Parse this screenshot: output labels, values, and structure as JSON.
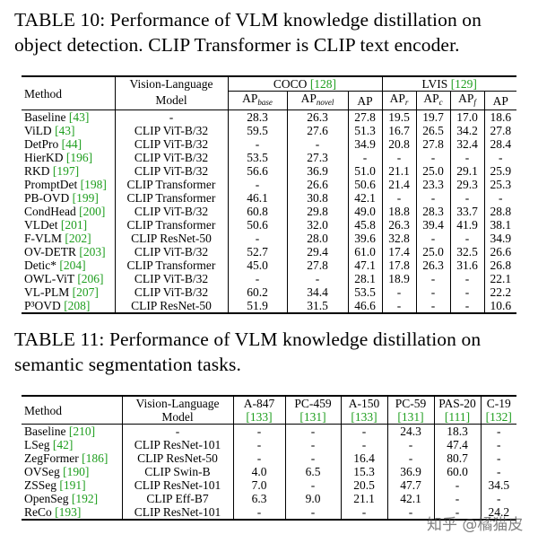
{
  "table10": {
    "caption": "TABLE 10: Performance of VLM knowledge distillation on object detection. CLIP Transformer is CLIP text encoder.",
    "header": {
      "method": "Method",
      "vl_top": "Vision-Language",
      "vl_bottom": "Model",
      "coco": "COCO",
      "coco_ref": "[128]",
      "lvis": "LVIS",
      "lvis_ref": "[129]",
      "ap_base": "AP",
      "ap_base_sub": "base",
      "ap_novel": "AP",
      "ap_novel_sub": "novel",
      "ap": "AP",
      "ap_r": "AP",
      "ap_r_sub": "r",
      "ap_c": "AP",
      "ap_c_sub": "c",
      "ap_f": "AP",
      "ap_f_sub": "f",
      "ap2": "AP"
    },
    "rows": [
      {
        "method": "Baseline",
        "ref": "[43]",
        "model": "-",
        "v": [
          "28.3",
          "26.3",
          "27.8",
          "19.5",
          "19.7",
          "17.0",
          "18.6"
        ]
      },
      {
        "method": "ViLD",
        "ref": "[43]",
        "model": "CLIP ViT-B/32",
        "v": [
          "59.5",
          "27.6",
          "51.3",
          "16.7",
          "26.5",
          "34.2",
          "27.8"
        ]
      },
      {
        "method": "DetPro",
        "ref": "[44]",
        "model": "CLIP ViT-B/32",
        "v": [
          "-",
          "-",
          "34.9",
          "20.8",
          "27.8",
          "32.4",
          "28.4"
        ]
      },
      {
        "method": "HierKD",
        "ref": "[196]",
        "model": "CLIP ViT-B/32",
        "v": [
          "53.5",
          "27.3",
          "-",
          "-",
          "-",
          "-",
          "-"
        ]
      },
      {
        "method": "RKD",
        "ref": "[197]",
        "model": "CLIP ViT-B/32",
        "v": [
          "56.6",
          "36.9",
          "51.0",
          "21.1",
          "25.0",
          "29.1",
          "25.9"
        ]
      },
      {
        "method": "PromptDet",
        "ref": "[198]",
        "model": "CLIP Transformer",
        "v": [
          "-",
          "26.6",
          "50.6",
          "21.4",
          "23.3",
          "29.3",
          "25.3"
        ]
      },
      {
        "method": "PB-OVD",
        "ref": "[199]",
        "model": "CLIP Transformer",
        "v": [
          "46.1",
          "30.8",
          "42.1",
          "-",
          "-",
          "-",
          "-"
        ]
      },
      {
        "method": "CondHead",
        "ref": "[200]",
        "model": "CLIP ViT-B/32",
        "v": [
          "60.8",
          "29.8",
          "49.0",
          "18.8",
          "28.3",
          "33.7",
          "28.8"
        ]
      },
      {
        "method": "VLDet",
        "ref": "[201]",
        "model": "CLIP Transformer",
        "v": [
          "50.6",
          "32.0",
          "45.8",
          "26.3",
          "39.4",
          "41.9",
          "38.1"
        ]
      },
      {
        "method": "F-VLM",
        "ref": "[202]",
        "model": "CLIP ResNet-50",
        "v": [
          "-",
          "28.0",
          "39.6",
          "32.8",
          "-",
          "-",
          "34.9"
        ]
      },
      {
        "method": "OV-DETR",
        "ref": "[203]",
        "model": "CLIP ViT-B/32",
        "v": [
          "52.7",
          "29.4",
          "61.0",
          "17.4",
          "25.0",
          "32.5",
          "26.6"
        ]
      },
      {
        "method": "Detic*",
        "ref": "[204]",
        "model": "CLIP Transformer",
        "v": [
          "45.0",
          "27.8",
          "47.1",
          "17.8",
          "26.3",
          "31.6",
          "26.8"
        ]
      },
      {
        "method": "OWL-ViT",
        "ref": "[206]",
        "model": "CLIP ViT-B/32",
        "v": [
          "-",
          "-",
          "28.1",
          "18.9",
          "-",
          "-",
          "22.1"
        ]
      },
      {
        "method": "VL-PLM",
        "ref": "[207]",
        "model": "CLIP ViT-B/32",
        "v": [
          "60.2",
          "34.4",
          "53.5",
          "-",
          "-",
          "-",
          "22.2"
        ]
      },
      {
        "method": "P³OVD",
        "ref": "[208]",
        "model": "CLIP ResNet-50",
        "v": [
          "51.9",
          "31.5",
          "46.6",
          "-",
          "-",
          "-",
          "10.6"
        ]
      }
    ]
  },
  "table11": {
    "caption": "TABLE 11: Performance of VLM knowledge distillation on semantic segmentation tasks.",
    "header": {
      "method": "Method",
      "vl_top": "Vision-Language",
      "vl_bottom": "Model",
      "cols": [
        {
          "name": "A-847",
          "ref": "[133]"
        },
        {
          "name": "PC-459",
          "ref": "[131]"
        },
        {
          "name": "A-150",
          "ref": "[133]"
        },
        {
          "name": "PC-59",
          "ref": "[131]"
        },
        {
          "name": "PAS-20",
          "ref": "[111]"
        },
        {
          "name": "C-19",
          "ref": "[132]"
        }
      ]
    },
    "rows": [
      {
        "method": "Baseline",
        "ref": "[210]",
        "model": "-",
        "v": [
          "-",
          "-",
          "-",
          "24.3",
          "18.3",
          "-"
        ]
      },
      {
        "method": "LSeg",
        "ref": "[42]",
        "model": "CLIP ResNet-101",
        "v": [
          "-",
          "-",
          "-",
          "-",
          "47.4",
          "-"
        ]
      },
      {
        "method": "ZegFormer",
        "ref": "[186]",
        "model": "CLIP ResNet-50",
        "v": [
          "-",
          "-",
          "16.4",
          "-",
          "80.7",
          "-"
        ]
      },
      {
        "method": "OVSeg",
        "ref": "[190]",
        "model": "CLIP Swin-B",
        "v": [
          "4.0",
          "6.5",
          "15.3",
          "36.9",
          "60.0",
          "-"
        ]
      },
      {
        "method": "ZSSeg",
        "ref": "[191]",
        "model": "CLIP ResNet-101",
        "v": [
          "7.0",
          "-",
          "20.5",
          "47.7",
          "-",
          "34.5"
        ]
      },
      {
        "method": "OpenSeg",
        "ref": "[192]",
        "model": "CLIP Eff-B7",
        "v": [
          "6.3",
          "9.0",
          "21.1",
          "42.1",
          "-",
          "-"
        ]
      },
      {
        "method": "ReCo",
        "ref": "[193]",
        "model": "CLIP ResNet-101",
        "v": [
          "-",
          "-",
          "-",
          "-",
          "-",
          "24.2"
        ]
      }
    ]
  },
  "watermark": "知乎 @橘猫皮"
}
